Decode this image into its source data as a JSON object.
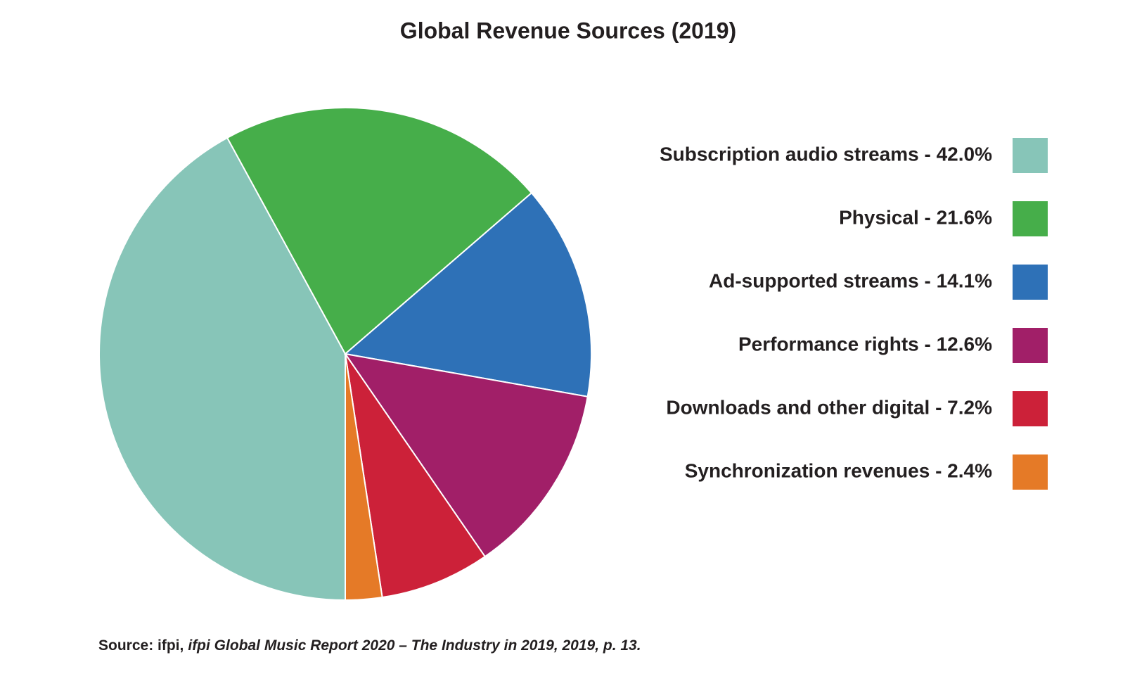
{
  "chart_data": {
    "type": "pie",
    "title": "Global Revenue Sources (2019)",
    "categories": [
      "Subscription audio streams - 42.0%",
      "Physical - 21.6%",
      "Ad-supported streams - 14.1%",
      "Performance rights - 12.6%",
      "Downloads and other digital - 7.2%",
      "Synchronization revenues - 2.4%"
    ],
    "values": [
      42.0,
      21.6,
      14.1,
      12.6,
      7.2,
      2.4
    ],
    "colors": [
      "#87c5b8",
      "#46ae4a",
      "#2e71b7",
      "#a11f68",
      "#cc2139",
      "#e57a27"
    ],
    "legend": "right",
    "source": {
      "prefix": "Source: ifpi,",
      "title": "ifpi Global Music Report 2020 – The Industry in 2019, 2019, p. 13."
    }
  }
}
